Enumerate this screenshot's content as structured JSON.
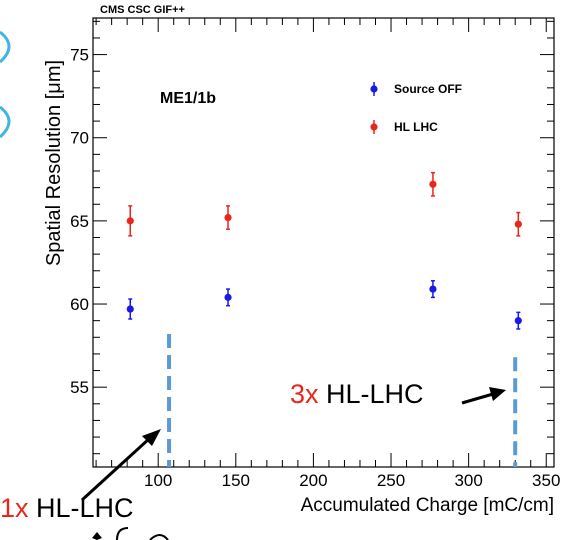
{
  "chart_data": {
    "type": "scatter",
    "header": "CMS CSC GIF++",
    "plot_label": "ME1/1b",
    "xlabel": "Accumulated Charge [mC/cm]",
    "ylabel": "Spatial Resolution  [μm]",
    "xlim": [
      58,
      355
    ],
    "ylim": [
      50.2,
      77.2
    ],
    "xticks": [
      100,
      150,
      200,
      250,
      300,
      350
    ],
    "yticks": [
      55,
      60,
      65,
      70,
      75
    ],
    "grid": false,
    "legend_position": "top-right",
    "series": [
      {
        "name": "Source OFF",
        "color": "#1a1ae6",
        "points": [
          {
            "x": 82,
            "y": 59.7,
            "err": 0.6
          },
          {
            "x": 145,
            "y": 60.4,
            "err": 0.5
          },
          {
            "x": 277,
            "y": 60.9,
            "err": 0.5
          },
          {
            "x": 332,
            "y": 59.0,
            "err": 0.5
          }
        ]
      },
      {
        "name": "HL LHC",
        "color": "#e8261c",
        "points": [
          {
            "x": 82,
            "y": 65.0,
            "err": 0.9
          },
          {
            "x": 145,
            "y": 65.2,
            "err": 0.7
          },
          {
            "x": 277,
            "y": 67.2,
            "err": 0.7
          },
          {
            "x": 332,
            "y": 64.8,
            "err": 0.7
          }
        ]
      }
    ],
    "reference_lines": [
      {
        "x": 107,
        "color": "#5b9bd5"
      },
      {
        "x": 330,
        "color": "#5b9bd5"
      }
    ]
  },
  "annotations": {
    "one_x": {
      "multiplier": "1x",
      "label": " HL-LHC"
    },
    "three_x": {
      "multiplier": "3x",
      "label": " HL-LHC"
    }
  }
}
